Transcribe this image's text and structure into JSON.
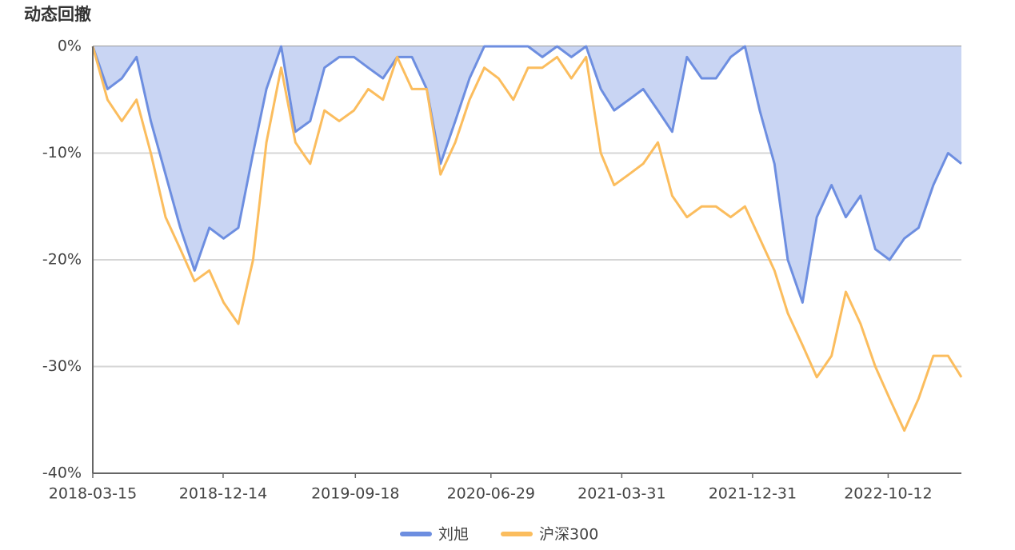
{
  "chart_data": {
    "type": "line",
    "title": "动态回撤",
    "x": [
      "2018-03-15",
      "2018-04-15",
      "2018-05-15",
      "2018-06-15",
      "2018-07-15",
      "2018-08-15",
      "2018-09-15",
      "2018-10-15",
      "2018-11-15",
      "2018-12-15",
      "2019-01-15",
      "2019-02-15",
      "2019-03-15",
      "2019-04-15",
      "2019-05-15",
      "2019-06-15",
      "2019-07-15",
      "2019-08-15",
      "2019-09-15",
      "2019-10-15",
      "2019-11-15",
      "2019-12-15",
      "2020-01-15",
      "2020-02-15",
      "2020-03-15",
      "2020-04-15",
      "2020-05-15",
      "2020-06-15",
      "2020-07-15",
      "2020-08-15",
      "2020-09-15",
      "2020-10-15",
      "2020-11-15",
      "2020-12-15",
      "2021-01-15",
      "2021-02-15",
      "2021-03-15",
      "2021-04-15",
      "2021-05-15",
      "2021-06-15",
      "2021-07-15",
      "2021-08-15",
      "2021-09-15",
      "2021-10-15",
      "2021-11-15",
      "2021-12-15",
      "2022-01-15",
      "2022-02-15",
      "2022-03-15",
      "2022-04-15",
      "2022-05-15",
      "2022-06-15",
      "2022-07-15",
      "2022-08-15",
      "2022-09-15",
      "2022-10-15",
      "2022-11-15",
      "2022-12-15",
      "2023-01-15",
      "2023-02-15",
      "2023-03-15"
    ],
    "series": [
      {
        "name": "刘旭",
        "color": "#6d8ee0",
        "area_color": "#c9d5f3",
        "values": [
          0,
          -4,
          -3,
          -1,
          -7,
          -12,
          -17,
          -21,
          -17,
          -18,
          -17,
          -10,
          -4,
          0,
          -8,
          -7,
          -2,
          -1,
          -1,
          -2,
          -3,
          -1,
          -1,
          -4,
          -11,
          -7,
          -3,
          0,
          0,
          0,
          0,
          -1,
          0,
          -1,
          0,
          -4,
          -6,
          -5,
          -4,
          -6,
          -8,
          -1,
          -3,
          -3,
          -1,
          0,
          -6,
          -11,
          -20,
          -24,
          -16,
          -13,
          -16,
          -14,
          -19,
          -20,
          -18,
          -17,
          -13,
          -10,
          -11
        ]
      },
      {
        "name": "沪深300",
        "color": "#fbbd5e",
        "values": [
          0,
          -5,
          -7,
          -5,
          -10,
          -16,
          -19,
          -22,
          -21,
          -24,
          -26,
          -20,
          -9,
          -2,
          -9,
          -11,
          -6,
          -7,
          -6,
          -4,
          -5,
          -1,
          -4,
          -4,
          -12,
          -9,
          -5,
          -2,
          -3,
          -5,
          -2,
          -2,
          -1,
          -3,
          -1,
          -10,
          -13,
          -12,
          -11,
          -9,
          -14,
          -16,
          -15,
          -15,
          -16,
          -15,
          -18,
          -21,
          -25,
          -28,
          -31,
          -29,
          -23,
          -26,
          -30,
          -33,
          -36,
          -33,
          -29,
          -29,
          -31
        ]
      }
    ],
    "xlim": [
      "2018-03-15",
      "2023-03-15"
    ],
    "xticks": [
      "2018-03-15",
      "2018-12-14",
      "2019-09-18",
      "2020-06-29",
      "2021-03-31",
      "2021-12-31",
      "2022-10-12"
    ],
    "ylim": [
      -40,
      0
    ],
    "yticks": [
      {
        "value": 0,
        "label": "0%"
      },
      {
        "value": -10,
        "label": "-10%"
      },
      {
        "value": -20,
        "label": "-20%"
      },
      {
        "value": -30,
        "label": "-30%"
      },
      {
        "value": -40,
        "label": "-40%"
      }
    ],
    "grid": true,
    "legend": "bottom"
  }
}
